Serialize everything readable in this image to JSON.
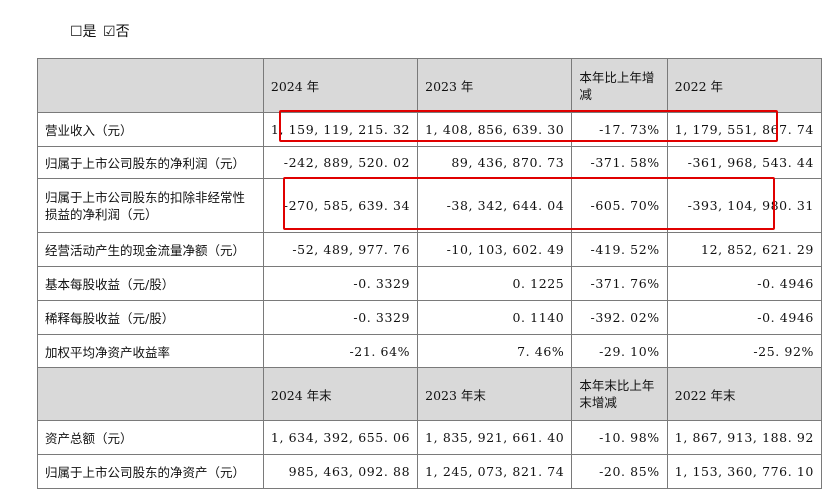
{
  "choice": {
    "yes_label": "☐是",
    "no_label": "☑否"
  },
  "header1": {
    "blank": "",
    "col1": "2024 年",
    "col2": "2023 年",
    "col3": "本年比上年增减",
    "col4": "2022 年"
  },
  "rows1": [
    {
      "label": "营业收入（元）",
      "v1": "1, 159, 119, 215. 32",
      "v2": "1, 408, 856, 639. 30",
      "v3": "-17. 73%",
      "v4": "1, 179, 551, 867. 74"
    },
    {
      "label": "归属于上市公司股东的净利润（元）",
      "v1": "-242, 889, 520. 02",
      "v2": "89, 436, 870. 73",
      "v3": "-371. 58%",
      "v4": "-361, 968, 543. 44"
    },
    {
      "label": "归属于上市公司股东的扣除非经常性损益的净利润（元）",
      "v1": "-270, 585, 639. 34",
      "v2": "-38, 342, 644. 04",
      "v3": "-605. 70%",
      "v4": "-393, 104, 980. 31"
    },
    {
      "label": "经营活动产生的现金流量净额（元）",
      "v1": "-52, 489, 977. 76",
      "v2": "-10, 103, 602. 49",
      "v3": "-419. 52%",
      "v4": "12, 852, 621. 29"
    },
    {
      "label": "基本每股收益（元/股）",
      "v1": "-0. 3329",
      "v2": "0. 1225",
      "v3": "-371. 76%",
      "v4": "-0. 4946"
    },
    {
      "label": "稀释每股收益（元/股）",
      "v1": "-0. 3329",
      "v2": "0. 1140",
      "v3": "-392. 02%",
      "v4": "-0. 4946"
    },
    {
      "label": "加权平均净资产收益率",
      "v1": "-21. 64%",
      "v2": "7. 46%",
      "v3": "-29. 10%",
      "v4": "-25. 92%"
    }
  ],
  "header2": {
    "blank": "",
    "col1": "2024 年末",
    "col2": "2023 年末",
    "col3": "本年末比上年末增减",
    "col4": "2022 年末"
  },
  "rows2": [
    {
      "label": "资产总额（元）",
      "v1": "1, 634, 392, 655. 06",
      "v2": "1, 835, 921, 661. 40",
      "v3": "-10. 98%",
      "v4": "1, 867, 913, 188. 92"
    },
    {
      "label": "归属于上市公司股东的净资产（元）",
      "v1": "985, 463, 092. 88",
      "v2": "1, 245, 073, 821. 74",
      "v3": "-20. 85%",
      "v4": "1, 153, 360, 776. 10"
    }
  ],
  "highlight_color": "#e00000"
}
